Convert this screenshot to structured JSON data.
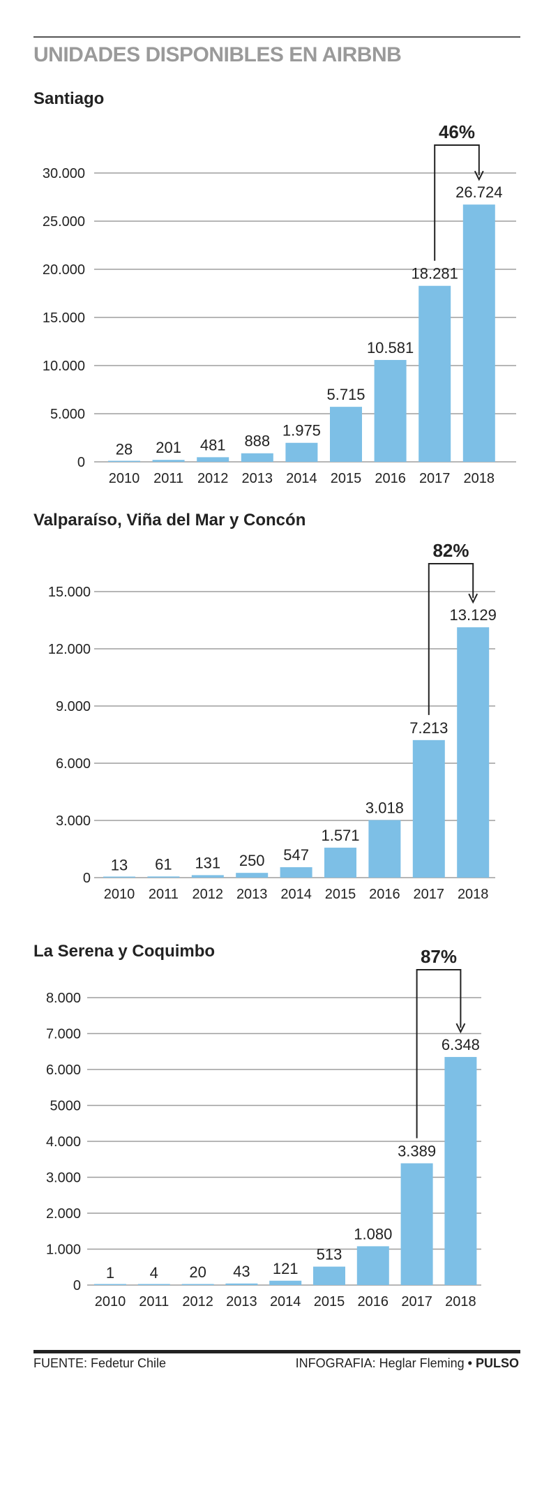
{
  "header": {
    "title": "UNIDADES DISPONIBLES EN AIRBNB"
  },
  "footer": {
    "source": "FUENTE: Fedetur Chile",
    "credit": "INFOGRAFIA: Heglar Fleming",
    "bullet": "•",
    "brand": "PULSO"
  },
  "colors": {
    "bar": "#7dbfe6",
    "grid": "#9e9e9e",
    "text": "#222222",
    "title_gray": "#9a9a9a"
  },
  "chart_data": [
    {
      "type": "bar",
      "title": "Santiago",
      "categories": [
        "2010",
        "2011",
        "2012",
        "2013",
        "2014",
        "2015",
        "2016",
        "2017",
        "2018"
      ],
      "values": [
        28,
        201,
        481,
        888,
        1975,
        5715,
        10581,
        18281,
        26724
      ],
      "value_labels": [
        "28",
        "201",
        "481",
        "888",
        "1.975",
        "5.715",
        "10.581",
        "18.281",
        "26.724"
      ],
      "yticks": [
        0,
        5000,
        10000,
        15000,
        20000,
        25000,
        30000
      ],
      "ytick_labels": [
        "0",
        "5.000",
        "10.000",
        "15.000",
        "20.000",
        "25.000",
        "30.000"
      ],
      "ylim": [
        0,
        30000
      ],
      "grid": true,
      "annotation": {
        "text": "46%",
        "from": "2017",
        "to": "2018"
      }
    },
    {
      "type": "bar",
      "title": "Valparaíso, Viña del Mar y Concón",
      "categories": [
        "2010",
        "2011",
        "2012",
        "2013",
        "2014",
        "2015",
        "2016",
        "2017",
        "2018"
      ],
      "values": [
        13,
        61,
        131,
        250,
        547,
        1571,
        3018,
        7213,
        13129
      ],
      "value_labels": [
        "13",
        "61",
        "131",
        "250",
        "547",
        "1.571",
        "3.018",
        "7.213",
        "13.129"
      ],
      "yticks": [
        0,
        3000,
        6000,
        9000,
        12000,
        15000
      ],
      "ytick_labels": [
        "0",
        "3.000",
        "6.000",
        "9.000",
        "12.000",
        "15.000"
      ],
      "ylim": [
        0,
        15000
      ],
      "grid": true,
      "annotation": {
        "text": "82%",
        "from": "2017",
        "to": "2018"
      }
    },
    {
      "type": "bar",
      "title": "La Serena y Coquimbo",
      "categories": [
        "2010",
        "2011",
        "2012",
        "2013",
        "2014",
        "2015",
        "2016",
        "2017",
        "2018"
      ],
      "values": [
        1,
        4,
        20,
        43,
        121,
        513,
        1080,
        3389,
        6348
      ],
      "value_labels": [
        "1",
        "4",
        "20",
        "43",
        "121",
        "513",
        "1.080",
        "3.389",
        "6.348"
      ],
      "yticks": [
        0,
        1000,
        2000,
        3000,
        4000,
        5000,
        6000,
        7000,
        8000
      ],
      "ytick_labels": [
        "0",
        "1.000",
        "2.000",
        "3.000",
        "4.000",
        "5000",
        "6.000",
        "7.000",
        "8.000"
      ],
      "ylim": [
        0,
        8000
      ],
      "grid": true,
      "annotation": {
        "text": "87%",
        "from": "2017",
        "to": "2018"
      }
    }
  ]
}
